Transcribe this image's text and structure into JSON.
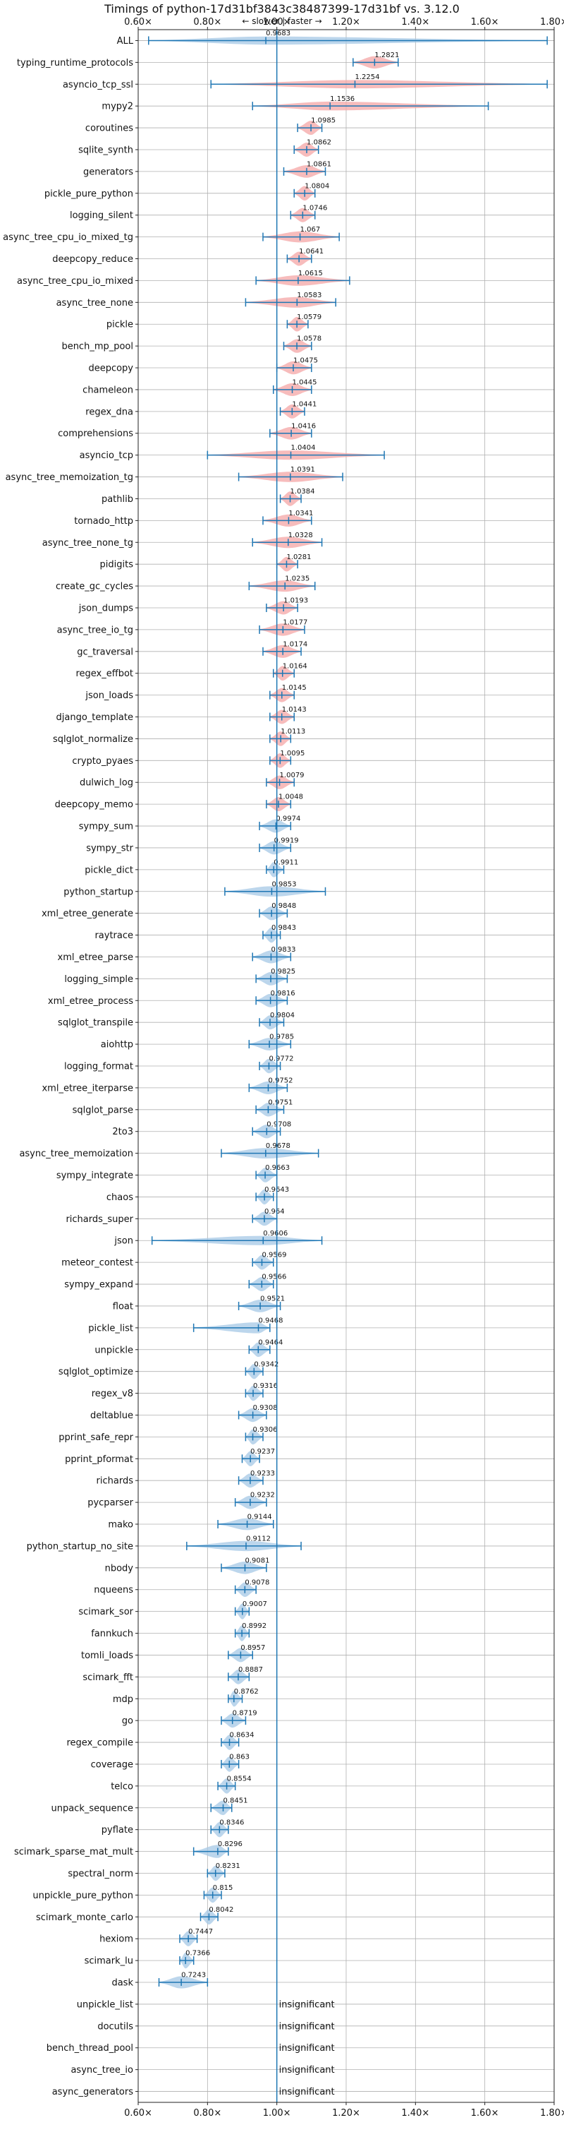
{
  "chart_data": {
    "type": "violin",
    "title": "Timings of python-17d31bf3843c38487399-17d31bf vs. 3.12.0",
    "subtitle": "←  slower  |  faster  →",
    "xlim": [
      0.6,
      1.8
    ],
    "x_ticks": [
      0.6,
      0.8,
      1.0,
      1.2,
      1.4,
      1.6,
      1.8
    ],
    "x_tick_labels": [
      "0.60×",
      "0.80×",
      "1.00×",
      "1.20×",
      "1.40×",
      "1.60×",
      "1.80×"
    ],
    "reference_line": 1.0,
    "grid": true,
    "colors": {
      "faster": "#a6c8e6",
      "slower": "#f4a6a6",
      "whisker": "#1f77b4",
      "reference": "#1f77b4",
      "grid": "#b0b0b0"
    },
    "insignificant_label": "insignificant",
    "benchmarks": [
      {
        "name": "ALL",
        "value": 0.9683,
        "min": 0.63,
        "max": 1.78
      },
      {
        "name": "typing_runtime_protocols",
        "value": 1.2821,
        "min": 1.22,
        "max": 1.35
      },
      {
        "name": "asyncio_tcp_ssl",
        "value": 1.2254,
        "min": 0.81,
        "max": 1.78
      },
      {
        "name": "mypy2",
        "value": 1.1536,
        "min": 0.93,
        "max": 1.61
      },
      {
        "name": "coroutines",
        "value": 1.0985,
        "min": 1.06,
        "max": 1.13
      },
      {
        "name": "sqlite_synth",
        "value": 1.0862,
        "min": 1.05,
        "max": 1.12
      },
      {
        "name": "generators",
        "value": 1.0861,
        "min": 1.02,
        "max": 1.14
      },
      {
        "name": "pickle_pure_python",
        "value": 1.0804,
        "min": 1.05,
        "max": 1.11
      },
      {
        "name": "logging_silent",
        "value": 1.0746,
        "min": 1.04,
        "max": 1.11
      },
      {
        "name": "async_tree_cpu_io_mixed_tg",
        "value": 1.067,
        "min": 0.96,
        "max": 1.18
      },
      {
        "name": "deepcopy_reduce",
        "value": 1.0641,
        "min": 1.03,
        "max": 1.1
      },
      {
        "name": "async_tree_cpu_io_mixed",
        "value": 1.0615,
        "min": 0.94,
        "max": 1.21
      },
      {
        "name": "async_tree_none",
        "value": 1.0583,
        "min": 0.91,
        "max": 1.17
      },
      {
        "name": "pickle",
        "value": 1.0579,
        "min": 1.03,
        "max": 1.09
      },
      {
        "name": "bench_mp_pool",
        "value": 1.0578,
        "min": 1.02,
        "max": 1.1
      },
      {
        "name": "deepcopy",
        "value": 1.0475,
        "min": 1.0,
        "max": 1.1
      },
      {
        "name": "chameleon",
        "value": 1.0445,
        "min": 0.99,
        "max": 1.1
      },
      {
        "name": "regex_dna",
        "value": 1.0441,
        "min": 1.01,
        "max": 1.08
      },
      {
        "name": "comprehensions",
        "value": 1.0416,
        "min": 0.98,
        "max": 1.1
      },
      {
        "name": "asyncio_tcp",
        "value": 1.0404,
        "min": 0.8,
        "max": 1.31
      },
      {
        "name": "async_tree_memoization_tg",
        "value": 1.0391,
        "min": 0.89,
        "max": 1.19
      },
      {
        "name": "pathlib",
        "value": 1.0384,
        "min": 1.01,
        "max": 1.07
      },
      {
        "name": "tornado_http",
        "value": 1.0341,
        "min": 0.96,
        "max": 1.1
      },
      {
        "name": "async_tree_none_tg",
        "value": 1.0328,
        "min": 0.93,
        "max": 1.13
      },
      {
        "name": "pidigits",
        "value": 1.0281,
        "min": 1.0,
        "max": 1.06
      },
      {
        "name": "create_gc_cycles",
        "value": 1.0235,
        "min": 0.92,
        "max": 1.11
      },
      {
        "name": "json_dumps",
        "value": 1.0193,
        "min": 0.97,
        "max": 1.06
      },
      {
        "name": "async_tree_io_tg",
        "value": 1.0177,
        "min": 0.95,
        "max": 1.08
      },
      {
        "name": "gc_traversal",
        "value": 1.0174,
        "min": 0.96,
        "max": 1.07
      },
      {
        "name": "regex_effbot",
        "value": 1.0164,
        "min": 0.99,
        "max": 1.05
      },
      {
        "name": "json_loads",
        "value": 1.0145,
        "min": 0.98,
        "max": 1.05
      },
      {
        "name": "django_template",
        "value": 1.0143,
        "min": 0.98,
        "max": 1.05
      },
      {
        "name": "sqlglot_normalize",
        "value": 1.0113,
        "min": 0.98,
        "max": 1.04
      },
      {
        "name": "crypto_pyaes",
        "value": 1.0095,
        "min": 0.98,
        "max": 1.04
      },
      {
        "name": "dulwich_log",
        "value": 1.0079,
        "min": 0.97,
        "max": 1.05
      },
      {
        "name": "deepcopy_memo",
        "value": 1.0048,
        "min": 0.97,
        "max": 1.04
      },
      {
        "name": "sympy_sum",
        "value": 0.9974,
        "min": 0.95,
        "max": 1.04
      },
      {
        "name": "sympy_str",
        "value": 0.9919,
        "min": 0.95,
        "max": 1.04
      },
      {
        "name": "pickle_dict",
        "value": 0.9911,
        "min": 0.97,
        "max": 1.02
      },
      {
        "name": "python_startup",
        "value": 0.9853,
        "min": 0.85,
        "max": 1.14
      },
      {
        "name": "xml_etree_generate",
        "value": 0.9848,
        "min": 0.95,
        "max": 1.03
      },
      {
        "name": "raytrace",
        "value": 0.9843,
        "min": 0.96,
        "max": 1.01
      },
      {
        "name": "xml_etree_parse",
        "value": 0.9833,
        "min": 0.93,
        "max": 1.04
      },
      {
        "name": "logging_simple",
        "value": 0.9825,
        "min": 0.94,
        "max": 1.03
      },
      {
        "name": "xml_etree_process",
        "value": 0.9816,
        "min": 0.94,
        "max": 1.03
      },
      {
        "name": "sqlglot_transpile",
        "value": 0.9804,
        "min": 0.95,
        "max": 1.02
      },
      {
        "name": "aiohttp",
        "value": 0.9785,
        "min": 0.92,
        "max": 1.04
      },
      {
        "name": "logging_format",
        "value": 0.9772,
        "min": 0.95,
        "max": 1.01
      },
      {
        "name": "xml_etree_iterparse",
        "value": 0.9752,
        "min": 0.92,
        "max": 1.03
      },
      {
        "name": "sqlglot_parse",
        "value": 0.9751,
        "min": 0.94,
        "max": 1.02
      },
      {
        "name": "2to3",
        "value": 0.9708,
        "min": 0.93,
        "max": 1.01
      },
      {
        "name": "async_tree_memoization",
        "value": 0.9678,
        "min": 0.84,
        "max": 1.12
      },
      {
        "name": "sympy_integrate",
        "value": 0.9663,
        "min": 0.94,
        "max": 1.0
      },
      {
        "name": "chaos",
        "value": 0.9643,
        "min": 0.94,
        "max": 0.99
      },
      {
        "name": "richards_super",
        "value": 0.964,
        "min": 0.93,
        "max": 1.0
      },
      {
        "name": "json",
        "value": 0.9606,
        "min": 0.64,
        "max": 1.13
      },
      {
        "name": "meteor_contest",
        "value": 0.9569,
        "min": 0.93,
        "max": 0.99
      },
      {
        "name": "sympy_expand",
        "value": 0.9566,
        "min": 0.92,
        "max": 0.99
      },
      {
        "name": "float",
        "value": 0.9521,
        "min": 0.89,
        "max": 1.01
      },
      {
        "name": "pickle_list",
        "value": 0.9468,
        "min": 0.76,
        "max": 0.98
      },
      {
        "name": "unpickle",
        "value": 0.9464,
        "min": 0.92,
        "max": 0.98
      },
      {
        "name": "sqlglot_optimize",
        "value": 0.9342,
        "min": 0.91,
        "max": 0.96
      },
      {
        "name": "regex_v8",
        "value": 0.9316,
        "min": 0.91,
        "max": 0.96
      },
      {
        "name": "deltablue",
        "value": 0.9308,
        "min": 0.89,
        "max": 0.97
      },
      {
        "name": "pprint_safe_repr",
        "value": 0.9306,
        "min": 0.91,
        "max": 0.96
      },
      {
        "name": "pprint_pformat",
        "value": 0.9237,
        "min": 0.9,
        "max": 0.95
      },
      {
        "name": "richards",
        "value": 0.9233,
        "min": 0.89,
        "max": 0.96
      },
      {
        "name": "pycparser",
        "value": 0.9232,
        "min": 0.88,
        "max": 0.97
      },
      {
        "name": "mako",
        "value": 0.9144,
        "min": 0.83,
        "max": 0.99
      },
      {
        "name": "python_startup_no_site",
        "value": 0.9112,
        "min": 0.74,
        "max": 1.07
      },
      {
        "name": "nbody",
        "value": 0.9081,
        "min": 0.84,
        "max": 0.97
      },
      {
        "name": "nqueens",
        "value": 0.9078,
        "min": 0.88,
        "max": 0.94
      },
      {
        "name": "scimark_sor",
        "value": 0.9007,
        "min": 0.88,
        "max": 0.92
      },
      {
        "name": "fannkuch",
        "value": 0.8992,
        "min": 0.88,
        "max": 0.92
      },
      {
        "name": "tomli_loads",
        "value": 0.8957,
        "min": 0.86,
        "max": 0.93
      },
      {
        "name": "scimark_fft",
        "value": 0.8887,
        "min": 0.86,
        "max": 0.92
      },
      {
        "name": "mdp",
        "value": 0.8762,
        "min": 0.86,
        "max": 0.9
      },
      {
        "name": "go",
        "value": 0.8719,
        "min": 0.84,
        "max": 0.91
      },
      {
        "name": "regex_compile",
        "value": 0.8634,
        "min": 0.84,
        "max": 0.89
      },
      {
        "name": "coverage",
        "value": 0.863,
        "min": 0.84,
        "max": 0.89
      },
      {
        "name": "telco",
        "value": 0.8554,
        "min": 0.83,
        "max": 0.88
      },
      {
        "name": "unpack_sequence",
        "value": 0.8451,
        "min": 0.81,
        "max": 0.87
      },
      {
        "name": "pyflate",
        "value": 0.8346,
        "min": 0.81,
        "max": 0.86
      },
      {
        "name": "scimark_sparse_mat_mult",
        "value": 0.8296,
        "min": 0.76,
        "max": 0.86
      },
      {
        "name": "spectral_norm",
        "value": 0.8231,
        "min": 0.8,
        "max": 0.85
      },
      {
        "name": "unpickle_pure_python",
        "value": 0.815,
        "min": 0.79,
        "max": 0.84
      },
      {
        "name": "scimark_monte_carlo",
        "value": 0.8042,
        "min": 0.78,
        "max": 0.83
      },
      {
        "name": "hexiom",
        "value": 0.7447,
        "min": 0.72,
        "max": 0.77
      },
      {
        "name": "scimark_lu",
        "value": 0.7366,
        "min": 0.72,
        "max": 0.76
      },
      {
        "name": "dask",
        "value": 0.7243,
        "min": 0.66,
        "max": 0.8
      },
      {
        "name": "unpickle_list",
        "value": null
      },
      {
        "name": "docutils",
        "value": null
      },
      {
        "name": "bench_thread_pool",
        "value": null
      },
      {
        "name": "async_tree_io",
        "value": null
      },
      {
        "name": "async_generators",
        "value": null
      }
    ]
  }
}
